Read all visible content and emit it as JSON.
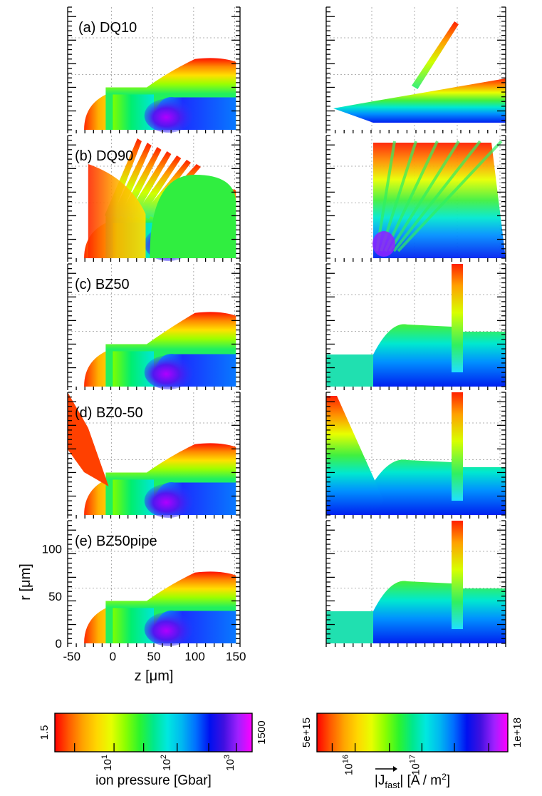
{
  "colors": {
    "rainbow": [
      "#ff0000",
      "#ff5a00",
      "#ffa500",
      "#ffd800",
      "#e6ff00",
      "#8cff00",
      "#2cf52c",
      "#00e88c",
      "#00e8e0",
      "#00b8f0",
      "#0070ff",
      "#0010f0",
      "#4010e0",
      "#a020ff",
      "#ff00ff"
    ]
  },
  "chart_data": [
    {
      "type": "heatmap",
      "description_key": "ion pressure maps (left column)",
      "panels": [
        {
          "label": "(a) DQ10"
        },
        {
          "label": "(b) DQ90"
        },
        {
          "label": "(c) BZ50"
        },
        {
          "label": "(d) BZ0-50"
        },
        {
          "label": "(e) BZ50pipe"
        }
      ],
      "xlabel": "z  [μm]",
      "ylabel": "r  [μm]",
      "xlim": [
        -55,
        155
      ],
      "ylim": [
        0,
        130
      ],
      "xticks": [
        "-50",
        "0",
        "50",
        "100",
        "150"
      ],
      "yticks": [
        "0",
        "50",
        "100"
      ],
      "colorbar": {
        "label": "ion pressure  [Gbar]",
        "min_label": "1.5",
        "max_label": "1500",
        "tick_labels": [
          "10",
          "10",
          "10"
        ],
        "tick_exponents": [
          "1",
          "2",
          "3"
        ],
        "scale": "log",
        "range": [
          1.5,
          1500
        ]
      }
    },
    {
      "type": "heatmap",
      "description_key": "fast electron current density maps (right column)",
      "panels": [
        {
          "label": "(a) DQ10"
        },
        {
          "label": "(b) DQ90"
        },
        {
          "label": "(c) BZ50"
        },
        {
          "label": "(d) BZ0-50"
        },
        {
          "label": "(e) BZ50pipe"
        }
      ],
      "colorbar": {
        "label_prefix": "|J",
        "label_sub": "fast",
        "label_suffix": "|   [A / m",
        "label_sup": "2",
        "label_end": "]",
        "min_label": "5e+15",
        "max_label": "1e+18",
        "tick_labels": [
          "10",
          "10"
        ],
        "tick_exponents": [
          "16",
          "17"
        ],
        "scale": "log",
        "range": [
          5000000000000000.0,
          1e+18
        ]
      }
    }
  ]
}
